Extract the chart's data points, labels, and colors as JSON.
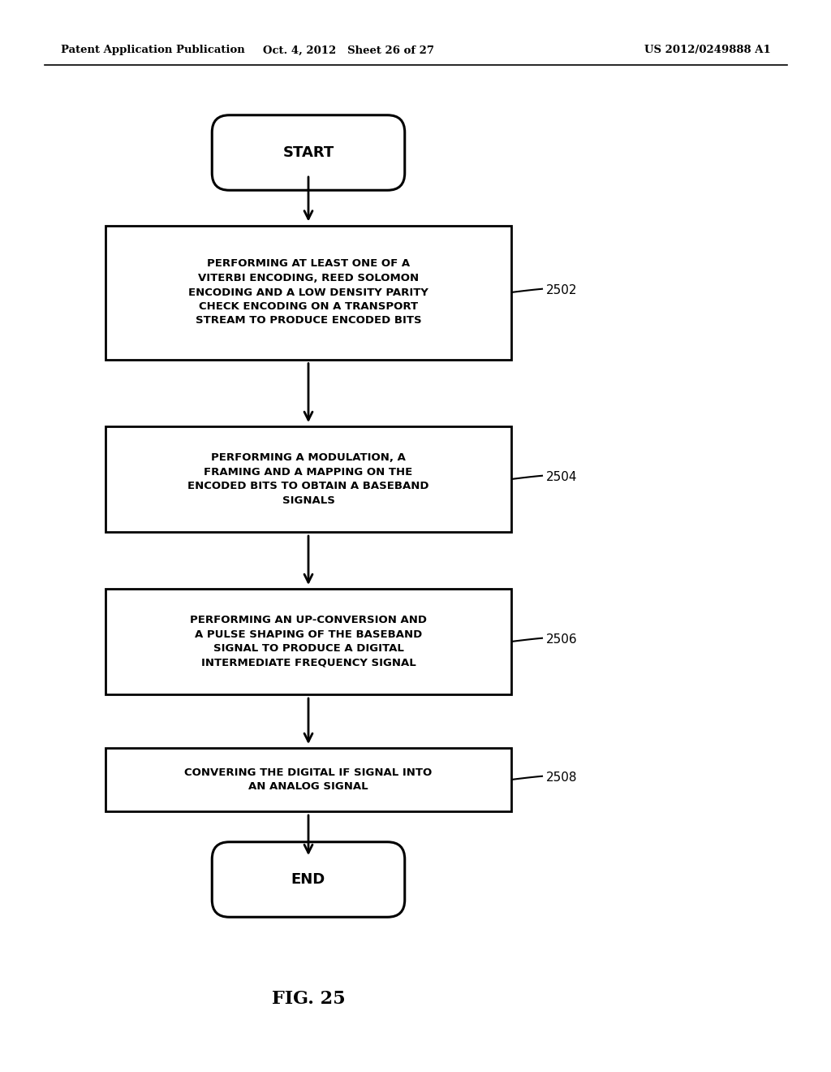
{
  "background_color": "#ffffff",
  "header_left": "Patent Application Publication",
  "header_center": "Oct. 4, 2012   Sheet 26 of 27",
  "header_right": "US 2012/0249888 A1",
  "start_label": "START",
  "end_label": "END",
  "box_2502_text": "PERFORMING AT LEAST ONE OF A\nVITERBI ENCODING, REED SOLOMON\nENCODING AND A LOW DENSITY PARITY\nCHECK ENCODING ON A TRANSPORT\nSTREAM TO PRODUCE ENCODED BITS",
  "box_2502_label": "2502",
  "box_2504_text": "PERFORMING A MODULATION, A\nFRAMING AND A MAPPING ON THE\nENCODED BITS TO OBTAIN A BASEBAND\nSIGNALS",
  "box_2504_label": "2504",
  "box_2506_text": "PERFORMING AN UP-CONVERSION AND\nA PULSE SHAPING OF THE BASEBAND\nSIGNAL TO PRODUCE A DIGITAL\nINTERMEDIATE FREQUENCY SIGNAL",
  "box_2506_label": "2506",
  "box_2508_text": "CONVERING THE DIGITAL IF SIGNAL INTO\nAN ANALOG SIGNAL",
  "box_2508_label": "2508",
  "figure_label": "FIG. 25"
}
